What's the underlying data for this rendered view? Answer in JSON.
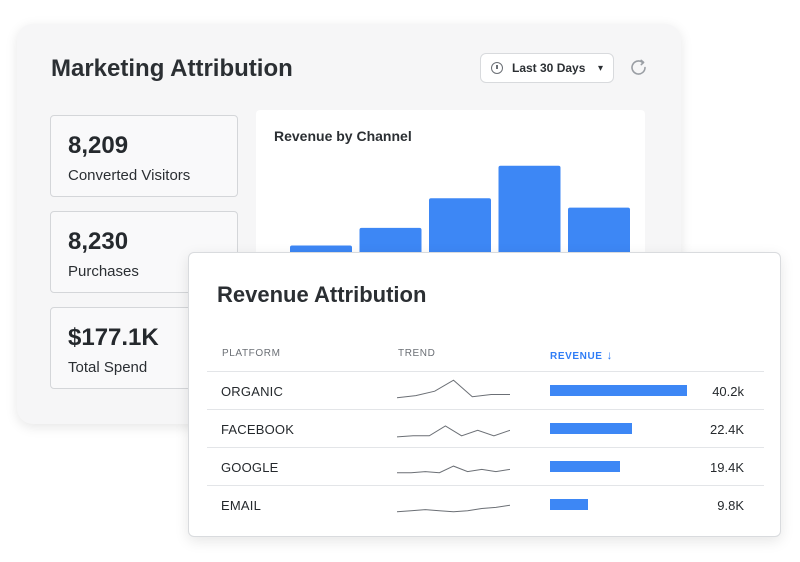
{
  "dashboard": {
    "title": "Marketing Attribution",
    "date_range": "Last 30 Days",
    "stats": [
      {
        "value": "8,209",
        "label": "Converted Visitors"
      },
      {
        "value": "8,230",
        "label": "Purchases"
      },
      {
        "value": "$177.1K",
        "label": "Total Spend"
      }
    ]
  },
  "chart_data": {
    "type": "bar",
    "title": "Revenue by Channel",
    "categories": [
      "",
      "",
      "",
      "",
      ""
    ],
    "values": [
      33,
      46,
      68,
      92,
      61
    ],
    "ylim": [
      0,
      100
    ],
    "bar_color": "#3d87f5"
  },
  "attribution": {
    "title": "Revenue Attribution",
    "columns": {
      "platform": "PLATFORM",
      "trend": "TREND",
      "revenue": "REVENUE"
    },
    "accent_color": "#2f7df6",
    "rows": [
      {
        "platform": "ORGANIC",
        "revenue": "40.2k",
        "share": 1.0,
        "trend": [
          2,
          4,
          8,
          18,
          3,
          5,
          5
        ]
      },
      {
        "platform": "FACEBOOK",
        "revenue": "22.4K",
        "share": 0.6,
        "trend": [
          1,
          2,
          2,
          11,
          2,
          7,
          2,
          7
        ]
      },
      {
        "platform": "GOOGLE",
        "revenue": "19.4K",
        "share": 0.51,
        "trend": [
          3,
          3,
          4,
          3,
          9,
          4,
          6,
          4,
          6
        ]
      },
      {
        "platform": "EMAIL",
        "revenue": "9.8K",
        "share": 0.28,
        "trend": [
          2,
          3,
          4,
          3,
          2,
          3,
          5,
          6,
          8
        ]
      }
    ]
  }
}
